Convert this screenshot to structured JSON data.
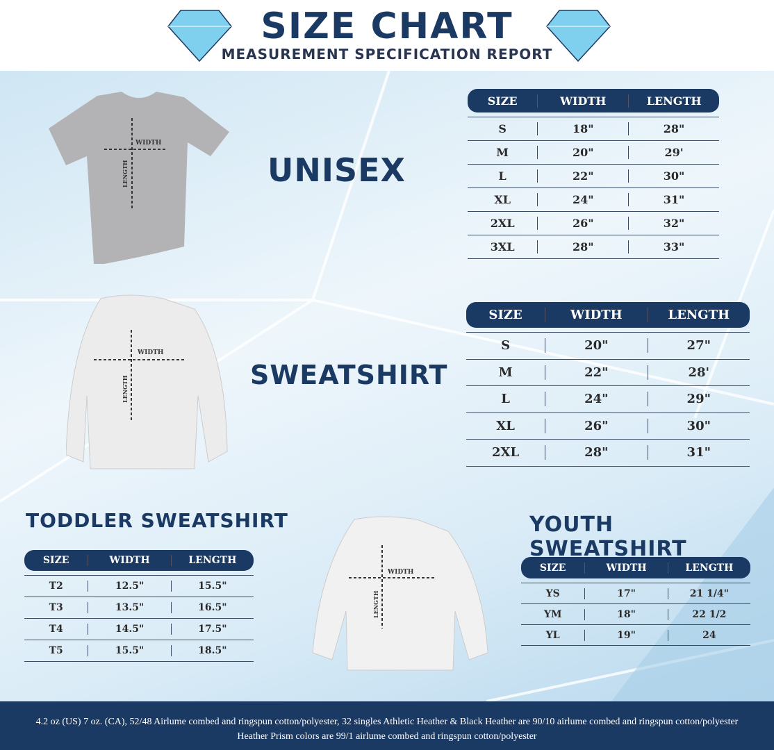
{
  "header": {
    "title": "SIZE CHART",
    "subtitle": "MEASUREMENT SPECIFICATION REPORT"
  },
  "colors": {
    "navy": "#1b3a63",
    "gem": "#7fd0ee",
    "background": "#dbecf7"
  },
  "labels": {
    "width": "WIDTH",
    "length": "LENGTH"
  },
  "unisex": {
    "title": "UNISEX",
    "columns": [
      "SIZE",
      "WIDTH",
      "LENGTH"
    ],
    "rows": [
      [
        "S",
        "18\"",
        "28\""
      ],
      [
        "M",
        "20\"",
        "29'"
      ],
      [
        "L",
        "22\"",
        "30\""
      ],
      [
        "XL",
        "24\"",
        "31\""
      ],
      [
        "2XL",
        "26\"",
        "32\""
      ],
      [
        "3XL",
        "28\"",
        "33\""
      ]
    ]
  },
  "sweatshirt": {
    "title": "SWEATSHIRT",
    "columns": [
      "SIZE",
      "WIDTH",
      "LENGTH"
    ],
    "rows": [
      [
        "S",
        "20\"",
        "27\""
      ],
      [
        "M",
        "22\"",
        "28'"
      ],
      [
        "L",
        "24\"",
        "29\""
      ],
      [
        "XL",
        "26\"",
        "30\""
      ],
      [
        "2XL",
        "28\"",
        "31\""
      ]
    ]
  },
  "toddler": {
    "title": "TODDLER SWEATSHIRT",
    "columns": [
      "SIZE",
      "WIDTH",
      "LENGTH"
    ],
    "rows": [
      [
        "T2",
        "12.5\"",
        "15.5\""
      ],
      [
        "T3",
        "13.5\"",
        "16.5\""
      ],
      [
        "T4",
        "14.5\"",
        "17.5\""
      ],
      [
        "T5",
        "15.5\"",
        "18.5\""
      ]
    ]
  },
  "youth": {
    "title": "YOUTH SWEATSHIRT",
    "columns": [
      "SIZE",
      "WIDTH",
      "LENGTH"
    ],
    "rows": [
      [
        "YS",
        "17\"",
        "21 1/4\""
      ],
      [
        "YM",
        "18\"",
        "22 1/2"
      ],
      [
        "YL",
        "19\"",
        "24"
      ]
    ]
  },
  "footer": {
    "text": "4.2 oz (US) 7 oz. (CA), 52/48 Airlume combed and ringspun cotton/polyester, 32 singles Athletic Heather & Black Heather are 90/10 airlume combed and ringspun cotton/polyester Heather Prism colors are 99/1 airlume combed and ringspun cotton/polyester"
  }
}
